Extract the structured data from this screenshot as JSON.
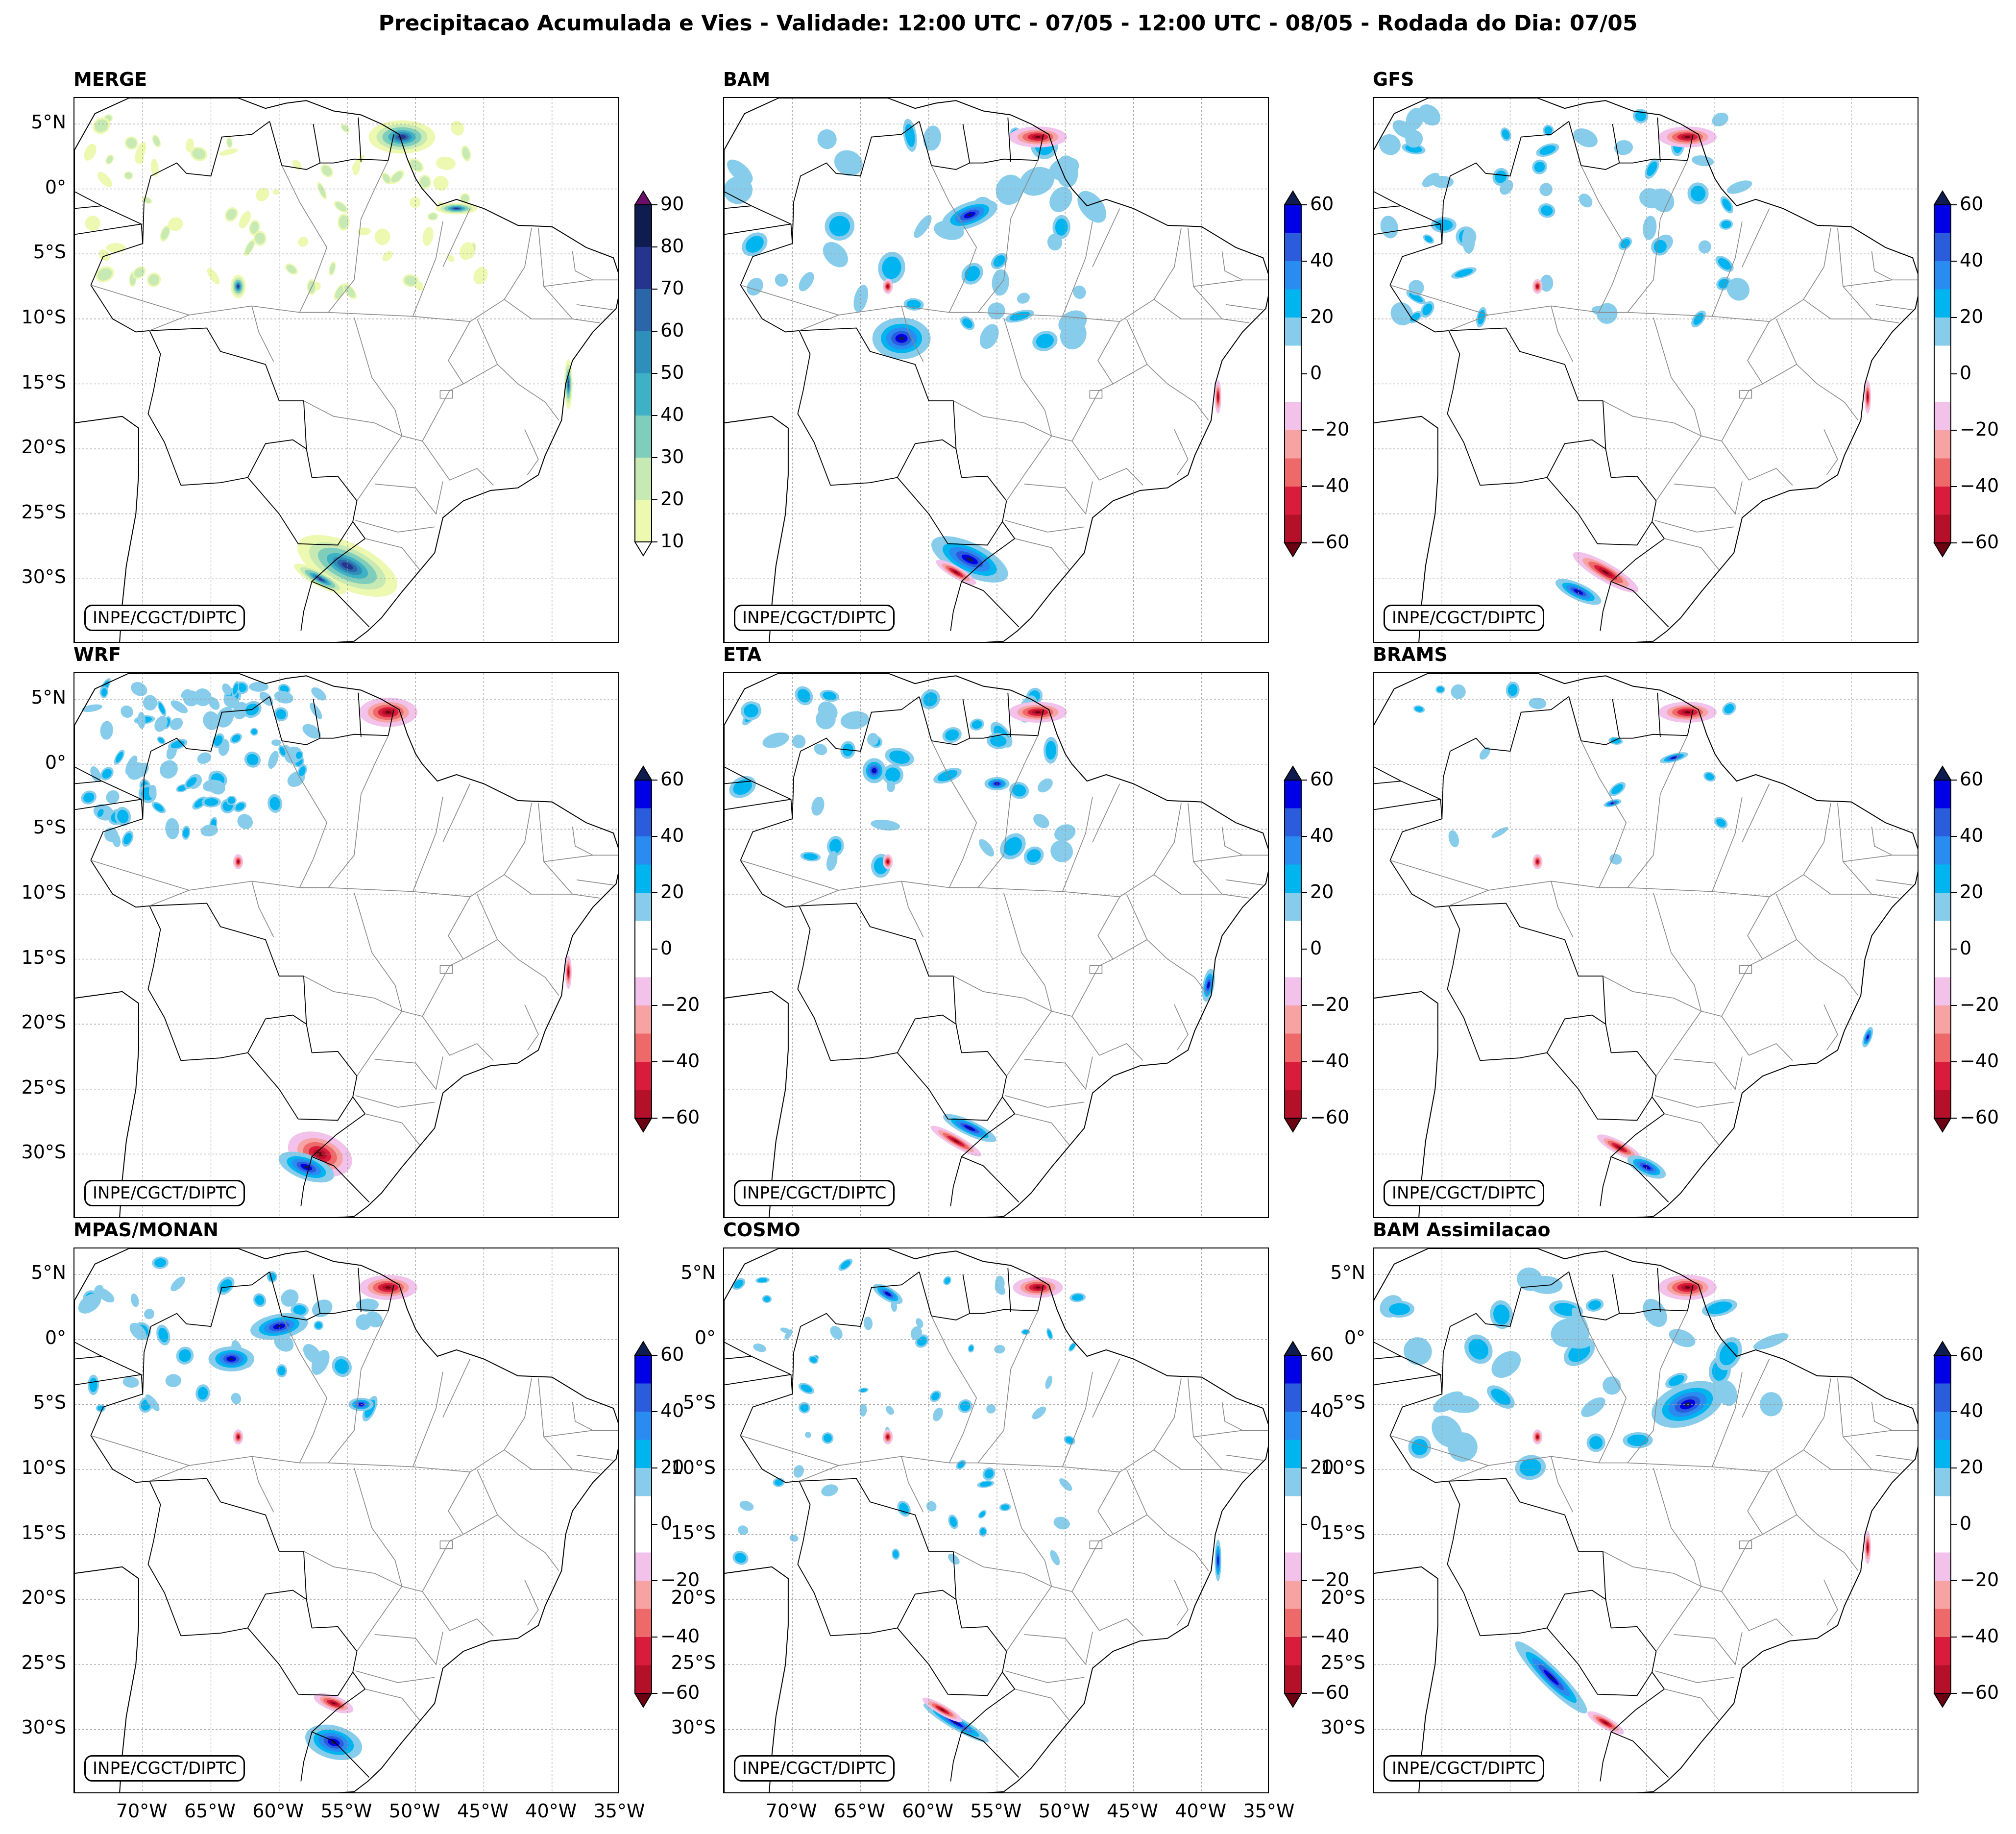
{
  "title": "Precipitacao Acumulada e Vies - Validade: 12:00 UTC - 07/05 - 12:00 UTC - 08/05 - Rodada do Dia: 07/05",
  "credit": "INPE/CGCT/DIPTC",
  "panels": [
    {
      "name": "MERGE",
      "type": "precip"
    },
    {
      "name": "BAM",
      "type": "bias"
    },
    {
      "name": "GFS",
      "type": "bias"
    },
    {
      "name": "WRF",
      "type": "bias"
    },
    {
      "name": "ETA",
      "type": "bias"
    },
    {
      "name": "BRAMS",
      "type": "bias"
    },
    {
      "name": "MPAS/MONAN",
      "type": "bias"
    },
    {
      "name": "COSMO",
      "type": "bias"
    },
    {
      "name": "BAM Assimilacao",
      "type": "bias"
    }
  ],
  "lat_labels": [
    "5°N",
    "0°",
    "5°S",
    "10°S",
    "15°S",
    "20°S",
    "25°S",
    "30°S"
  ],
  "lon_labels": [
    "70°W",
    "65°W",
    "60°W",
    "55°W",
    "50°W",
    "45°W",
    "40°W",
    "35°W"
  ],
  "precip_colorbar": {
    "ticks": [
      "90",
      "80",
      "70",
      "60",
      "50",
      "40",
      "30",
      "20",
      "10"
    ],
    "colors": [
      "#0e1c4f",
      "#25358f",
      "#2a66a8",
      "#2f8fbb",
      "#3eb1c4",
      "#7fcdbb",
      "#c7e9b4",
      "#edf8b1"
    ],
    "over_color": "#6b0f6b",
    "under_color": "#ffffff"
  },
  "bias_colorbar": {
    "ticks": [
      "60",
      "40",
      "20",
      "0",
      "−20",
      "−40",
      "−60"
    ],
    "colors": [
      "#0000e6",
      "#2a5cdc",
      "#2a8cf0",
      "#00b4f0",
      "#87cdeb",
      "#ffffff",
      "#ffffff",
      "#f2c2ea",
      "#f7a3a3",
      "#ee6a6a",
      "#d91c3c",
      "#b4102a"
    ],
    "over_color": "#0e1c4f",
    "under_color": "#6b0012"
  }
}
